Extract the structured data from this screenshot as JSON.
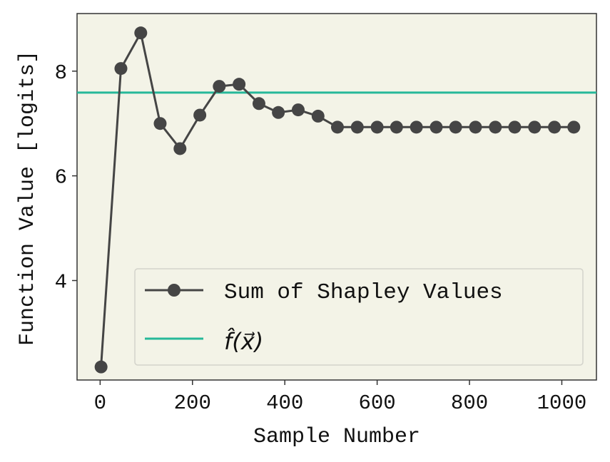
{
  "chart_data": {
    "type": "line",
    "title": "",
    "xlabel": "Sample Number",
    "ylabel": "Function Value [logits]",
    "xlim": [
      -50,
      1075
    ],
    "ylim": [
      2.1,
      9.1
    ],
    "xticks": [
      0,
      200,
      400,
      600,
      800,
      1000
    ],
    "xtick_labels": [
      "0",
      "200",
      "400",
      "600",
      "800",
      "1000"
    ],
    "yticks": [
      4,
      6,
      8
    ],
    "ytick_labels": [
      "4",
      "6",
      "8"
    ],
    "grid": false,
    "legend_position": "lower-right",
    "series": [
      {
        "name": "Sum of Shapley Values",
        "kind": "line-markers",
        "color": "#454545",
        "x": [
          2,
          45,
          88,
          130,
          173,
          216,
          258,
          301,
          344,
          386,
          429,
          472,
          514,
          557,
          600,
          642,
          685,
          728,
          770,
          813,
          856,
          898,
          941,
          984,
          1026
        ],
        "y": [
          2.35,
          8.05,
          8.73,
          7.0,
          6.52,
          7.16,
          7.71,
          7.75,
          7.38,
          7.21,
          7.26,
          7.14,
          6.93,
          6.93,
          6.93,
          6.93,
          6.93,
          6.93,
          6.93,
          6.93,
          6.93,
          6.93,
          6.93,
          6.93,
          6.93
        ]
      },
      {
        "name": "f̂(x⃗)",
        "kind": "hline",
        "color": "#26b899",
        "value": 7.59
      }
    ],
    "legend": [
      {
        "label": "Sum of Shapley Values",
        "series": 0
      },
      {
        "label": "f̂(x⃗)",
        "series": 1
      }
    ],
    "colors": {
      "plot_background": "#f3f3e7",
      "axes_edge": "#333333",
      "legend_background": "#f3f3e7",
      "legend_edge": "#d3d3cb"
    }
  }
}
